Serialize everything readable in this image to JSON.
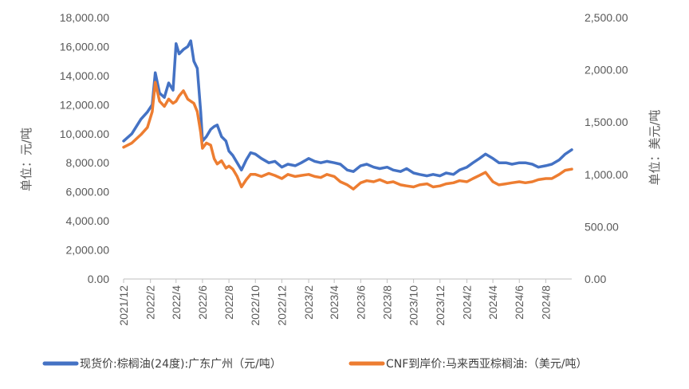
{
  "chart_data": {
    "type": "line",
    "title": "",
    "ylabel_left": "单位：元/吨",
    "ylabel_right": "单位：美元/吨",
    "left_axis": {
      "min": 0,
      "max": 18000,
      "step": 2000,
      "ticks": [
        "0.00",
        "2,000.00",
        "4,000.00",
        "6,000.00",
        "8,000.00",
        "10,000.00",
        "12,000.00",
        "14,000.00",
        "16,000.00",
        "18,000.00"
      ]
    },
    "right_axis": {
      "min": 0,
      "max": 2500,
      "step": 500,
      "ticks": [
        "0.00",
        "500.00",
        "1,000.00",
        "1,500.00",
        "2,000.00",
        "2,500.00"
      ]
    },
    "x_ticks": [
      "2021/12",
      "2022/2",
      "2022/4",
      "2022/6",
      "2022/8",
      "2022/10",
      "2022/12",
      "2023/2",
      "2023/4",
      "2023/6",
      "2023/8",
      "2023/10",
      "2023/12",
      "2024/2",
      "2024/4",
      "2024/6",
      "2024/8"
    ],
    "x_range": [
      "2021-12-01",
      "2024-09-30"
    ],
    "grid": false,
    "legend_position": "bottom",
    "series": [
      {
        "name": "现货价:棕榈油(24度):广东广州（元/吨）",
        "axis": "left",
        "color": "#4472C4",
        "x": [
          "2021-12-01",
          "2021-12-20",
          "2022-01-10",
          "2022-01-25",
          "2022-02-05",
          "2022-02-12",
          "2022-02-22",
          "2022-03-05",
          "2022-03-15",
          "2022-03-25",
          "2022-04-01",
          "2022-04-08",
          "2022-04-18",
          "2022-04-28",
          "2022-05-05",
          "2022-05-12",
          "2022-05-20",
          "2022-05-28",
          "2022-06-01",
          "2022-06-10",
          "2022-06-20",
          "2022-06-28",
          "2022-07-05",
          "2022-07-15",
          "2022-07-25",
          "2022-08-01",
          "2022-08-10",
          "2022-08-20",
          "2022-08-30",
          "2022-09-10",
          "2022-09-20",
          "2022-10-01",
          "2022-10-15",
          "2022-11-01",
          "2022-11-15",
          "2022-12-01",
          "2022-12-15",
          "2023-01-01",
          "2023-01-15",
          "2023-02-01",
          "2023-02-15",
          "2023-03-01",
          "2023-03-15",
          "2023-04-01",
          "2023-04-15",
          "2023-05-01",
          "2023-05-15",
          "2023-06-01",
          "2023-06-15",
          "2023-07-01",
          "2023-07-15",
          "2023-08-01",
          "2023-08-15",
          "2023-09-01",
          "2023-09-15",
          "2023-10-01",
          "2023-10-15",
          "2023-11-01",
          "2023-11-15",
          "2023-12-01",
          "2023-12-15",
          "2024-01-01",
          "2024-01-15",
          "2024-02-01",
          "2024-02-15",
          "2024-03-01",
          "2024-03-15",
          "2024-04-01",
          "2024-04-15",
          "2024-05-01",
          "2024-05-15",
          "2024-06-01",
          "2024-06-15",
          "2024-07-01",
          "2024-07-15",
          "2024-08-01",
          "2024-08-15",
          "2024-09-01",
          "2024-09-15",
          "2024-09-30"
        ],
        "y": [
          9500,
          10000,
          11000,
          11500,
          12000,
          14200,
          12800,
          12500,
          13500,
          13000,
          16200,
          15500,
          15800,
          16000,
          16400,
          15000,
          14500,
          11500,
          9500,
          9800,
          10300,
          10500,
          10600,
          9800,
          9500,
          8800,
          8500,
          8000,
          7500,
          8200,
          8700,
          8600,
          8300,
          8000,
          8100,
          7700,
          7900,
          7800,
          8000,
          8300,
          8100,
          8000,
          8100,
          8000,
          7900,
          7500,
          7400,
          7800,
          7900,
          7700,
          7600,
          7700,
          7500,
          7400,
          7600,
          7300,
          7200,
          7100,
          7200,
          7100,
          7300,
          7200,
          7500,
          7700,
          8000,
          8300,
          8600,
          8300,
          8000,
          8000,
          7900,
          8000,
          8000,
          7900,
          7700,
          7800,
          7900,
          8200,
          8600,
          8900
        ]
      },
      {
        "name": "CNF到岸价:马来西亚棕榈油:（美元/吨）",
        "axis": "right",
        "color": "#ED7D31",
        "x": [
          "2021-12-01",
          "2021-12-20",
          "2022-01-10",
          "2022-01-25",
          "2022-02-05",
          "2022-02-12",
          "2022-02-22",
          "2022-03-05",
          "2022-03-15",
          "2022-03-25",
          "2022-04-01",
          "2022-04-08",
          "2022-04-18",
          "2022-04-28",
          "2022-05-05",
          "2022-05-12",
          "2022-05-20",
          "2022-05-28",
          "2022-06-01",
          "2022-06-10",
          "2022-06-20",
          "2022-06-28",
          "2022-07-05",
          "2022-07-15",
          "2022-07-25",
          "2022-08-01",
          "2022-08-10",
          "2022-08-20",
          "2022-08-30",
          "2022-09-10",
          "2022-09-20",
          "2022-10-01",
          "2022-10-15",
          "2022-11-01",
          "2022-11-15",
          "2022-12-01",
          "2022-12-15",
          "2023-01-01",
          "2023-01-15",
          "2023-02-01",
          "2023-02-15",
          "2023-03-01",
          "2023-03-15",
          "2023-04-01",
          "2023-04-15",
          "2023-05-01",
          "2023-05-15",
          "2023-06-01",
          "2023-06-15",
          "2023-07-01",
          "2023-07-15",
          "2023-08-01",
          "2023-08-15",
          "2023-09-01",
          "2023-09-15",
          "2023-10-01",
          "2023-10-15",
          "2023-11-01",
          "2023-11-15",
          "2023-12-01",
          "2023-12-15",
          "2024-01-01",
          "2024-01-15",
          "2024-02-01",
          "2024-02-15",
          "2024-03-01",
          "2024-03-15",
          "2024-04-01",
          "2024-04-15",
          "2024-05-01",
          "2024-05-15",
          "2024-06-01",
          "2024-06-15",
          "2024-07-01",
          "2024-07-15",
          "2024-08-01",
          "2024-08-15",
          "2024-09-01",
          "2024-09-15",
          "2024-09-30"
        ],
        "y": [
          1260,
          1300,
          1380,
          1450,
          1600,
          1880,
          1700,
          1650,
          1720,
          1680,
          1700,
          1750,
          1800,
          1720,
          1700,
          1680,
          1600,
          1400,
          1250,
          1300,
          1280,
          1150,
          1100,
          1130,
          1060,
          1080,
          1050,
          980,
          880,
          950,
          1000,
          1000,
          980,
          1010,
          990,
          960,
          1000,
          980,
          990,
          1000,
          980,
          970,
          1000,
          980,
          930,
          900,
          860,
          920,
          940,
          930,
          950,
          920,
          930,
          900,
          890,
          880,
          900,
          910,
          880,
          890,
          910,
          920,
          940,
          930,
          960,
          990,
          1020,
          930,
          900,
          910,
          920,
          930,
          920,
          930,
          950,
          960,
          960,
          1000,
          1040,
          1050
        ]
      }
    ]
  }
}
